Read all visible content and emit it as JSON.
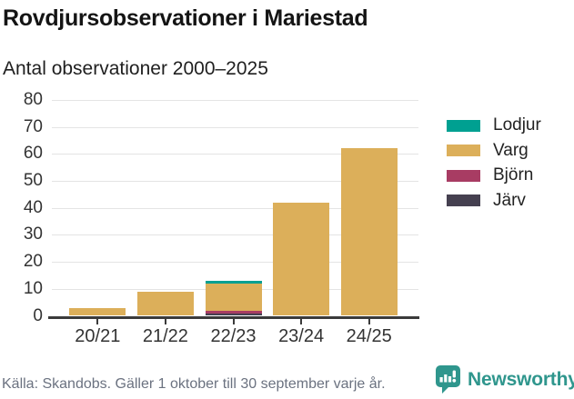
{
  "header": {
    "title": "Rovdjursobservationer i Mariestad",
    "subtitle": "Antal observationer 2000–2025"
  },
  "chart_data": {
    "type": "bar",
    "stacked": true,
    "title": "Rovdjursobservationer i Mariestad",
    "subtitle": "Antal observationer 2000–2025",
    "categories": [
      "20/21",
      "21/22",
      "22/23",
      "23/24",
      "24/25"
    ],
    "series": [
      {
        "name": "Lodjur",
        "color": "#00a091",
        "values": [
          0,
          0,
          1,
          0,
          0
        ]
      },
      {
        "name": "Varg",
        "color": "#dcaf5a",
        "values": [
          3,
          9,
          10,
          42,
          62
        ]
      },
      {
        "name": "Björn",
        "color": "#a83c63",
        "values": [
          0,
          0,
          1,
          0,
          0
        ]
      },
      {
        "name": "Järv",
        "color": "#454050",
        "values": [
          0,
          0,
          1,
          0,
          0
        ]
      }
    ],
    "stack_order_bottom_to_top": [
      "Järv",
      "Björn",
      "Varg",
      "Lodjur"
    ],
    "totals": [
      3,
      9,
      13,
      42,
      62
    ],
    "yticks": [
      0,
      10,
      20,
      30,
      40,
      50,
      60,
      70,
      80
    ],
    "ylim": [
      0,
      80
    ],
    "grid": true,
    "legend_position": "right"
  },
  "footer": {
    "source": "Källa: Skandobs. Gäller 1 oktober till 30 september varje år."
  },
  "branding": {
    "wordmark": "Newsworthy",
    "color": "#2f968d"
  },
  "colors": {
    "axis": "#3b3b3b",
    "gridline": "#e4e4e4",
    "tick_label": "#333333",
    "source_text": "#6b7280"
  }
}
